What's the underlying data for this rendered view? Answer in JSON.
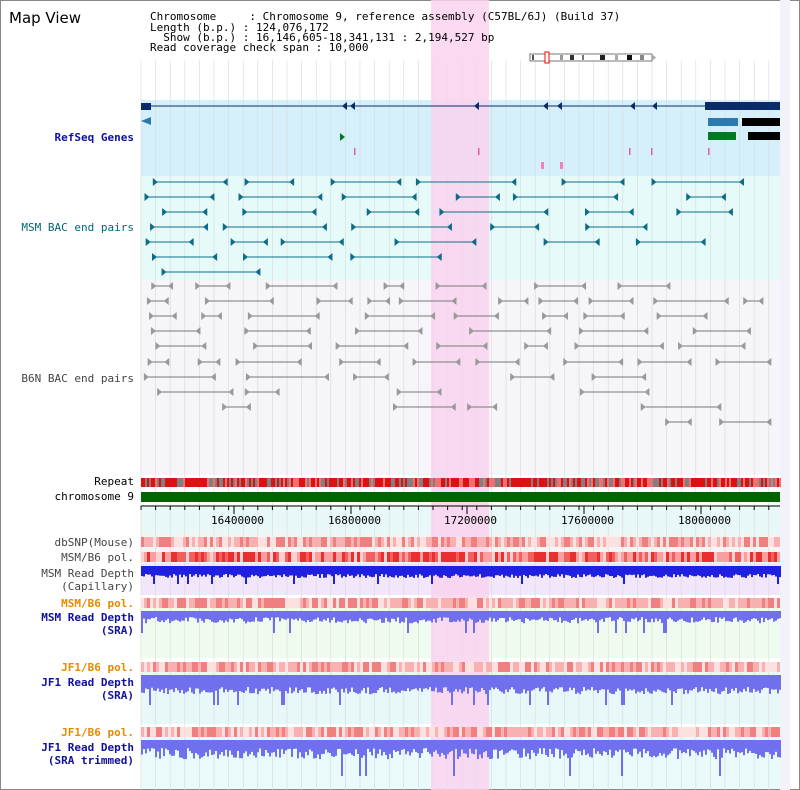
{
  "header": {
    "title": "Map View",
    "info_lines": [
      "Chromosome     : Chromosome 9, reference assembly (C57BL/6J) (Build 37)",
      "Length (b.p.) : 124,076,172",
      "  Show (b.p.) : 16,146,605-18,341,131 : 2,194,527 bp",
      "Read coverage check span : 10,000"
    ]
  },
  "tracks": {
    "refseq": "RefSeq Genes",
    "msm_bac": "MSM BAC end pairs",
    "b6n_bac": "B6N BAC end pairs",
    "repeat": "Repeat",
    "chromosome": "chromosome 9",
    "dbsnp": "dbSNP(Mouse)",
    "msm_b6_pol": "MSM/B6 pol.",
    "msm_depth_cap_1": "MSM Read Depth",
    "msm_depth_cap_2": "(Capillary)",
    "msm_b6_pol_sra": "MSM/B6 pol.",
    "msm_depth_sra_1": "MSM Read Depth",
    "msm_depth_sra_2": "(SRA)",
    "jf1_b6_pol": "JF1/B6 pol.",
    "jf1_depth_sra_1": "JF1 Read Depth",
    "jf1_depth_sra_2": "(SRA)",
    "jf1_b6_pol_trim": "JF1/B6 pol.",
    "jf1_depth_trim_1": "JF1 Read Depth",
    "jf1_depth_trim_2": "(SRA trimmed)"
  },
  "axis": {
    "ticks": [
      "16400000",
      "16800000",
      "17200000",
      "17600000",
      "18000000"
    ]
  },
  "colors": {
    "highlight": "#f9d2ee",
    "refseq_bg": "#d6f0fb",
    "bac_bg": "#e6fafa",
    "b6n_bg": "#f5f5fa",
    "chromosome": "#006400",
    "depth_blue": "#2020e0",
    "depth_light": "#7070ee"
  }
}
